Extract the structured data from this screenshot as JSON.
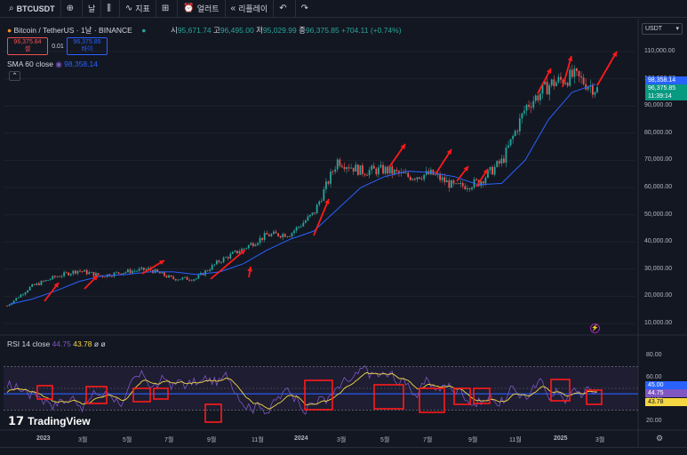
{
  "toolbar": {
    "symbol": "BTCUSDT",
    "interval": "날",
    "indicators": "지표",
    "alerts": "얼러트",
    "replay": "리플레이"
  },
  "header": {
    "title": "Bitcoin / TetherUS · 1날 · BINANCE",
    "open_label": "시",
    "open": "95,671.74",
    "high_label": "고",
    "high": "96,495.00",
    "low_label": "저",
    "low": "95,029.99",
    "close_label": "종",
    "close": "96,375.85",
    "change": "+704.11 (+0.74%)",
    "sell_price": "96,375.84",
    "sell_label": "셀",
    "spread": "0.01",
    "buy_price": "96,375.85",
    "buy_label": "바이",
    "sma_label": "SMA 60 close",
    "sma_value": "98,358.14",
    "rsi_label": "RSI 14 close",
    "rsi_value": "44.75",
    "rsi_ma": "43.78",
    "rsi_extra": "ø ø"
  },
  "currency_button": "USDT",
  "price_axis": [
    "110,000.00",
    "100,000.00",
    "90,000.00",
    "80,000.00",
    "70,000.00",
    "60,000.00",
    "50,000.00",
    "40,000.00",
    "30,000.00",
    "20,000.00",
    "10,000.00"
  ],
  "price_tags": {
    "sma": "98,358.14",
    "last": "96,375.85",
    "countdown": "11:39:14"
  },
  "rsi_axis": [
    "80.00",
    "60.00",
    "40.00",
    "20.00"
  ],
  "rsi_tags": {
    "top": "45.00",
    "mid": "44.75",
    "low": "43.78"
  },
  "time_axis": [
    "2023",
    "3월",
    "5월",
    "7월",
    "9월",
    "11월",
    "2024",
    "3월",
    "5월",
    "7월",
    "9월",
    "11월",
    "2025",
    "3월"
  ],
  "branding": "TradingView",
  "colors": {
    "up": "#26a69a",
    "down": "#ef5350",
    "sma": "#2962ff",
    "rsi": "#7e57c2",
    "rsi_ma": "#f5d742",
    "annotation": "#ff1a1a"
  },
  "chart_data": {
    "type": "line",
    "x": [
      "2023-01",
      "2023-02",
      "2023-03",
      "2023-04",
      "2023-05",
      "2023-06",
      "2023-07",
      "2023-08",
      "2023-09",
      "2023-10",
      "2023-11",
      "2023-12",
      "2024-01",
      "2024-02",
      "2024-03",
      "2024-04",
      "2024-05",
      "2024-06",
      "2024-07",
      "2024-08",
      "2024-09",
      "2024-10",
      "2024-11",
      "2024-12",
      "2025-01",
      "2025-02"
    ],
    "series": [
      {
        "values": [
          16500,
          23500,
          27000,
          29500,
          27500,
          29000,
          30000,
          26500,
          26500,
          33000,
          37500,
          42500,
          43000,
          50500,
          70000,
          66000,
          66500,
          64000,
          65000,
          60000,
          62000,
          70000,
          90000,
          98000,
          101000,
          96000
        ]
      },
      {
        "values": [
          17000,
          19000,
          22000,
          25500,
          27500,
          28000,
          29000,
          29000,
          28000,
          29000,
          32000,
          37000,
          41000,
          44000,
          52000,
          60000,
          64000,
          66000,
          65500,
          64000,
          61000,
          61500,
          70000,
          85000,
          95000,
          98000
        ]
      }
    ],
    "ylim": [
      10000,
      112000
    ]
  }
}
